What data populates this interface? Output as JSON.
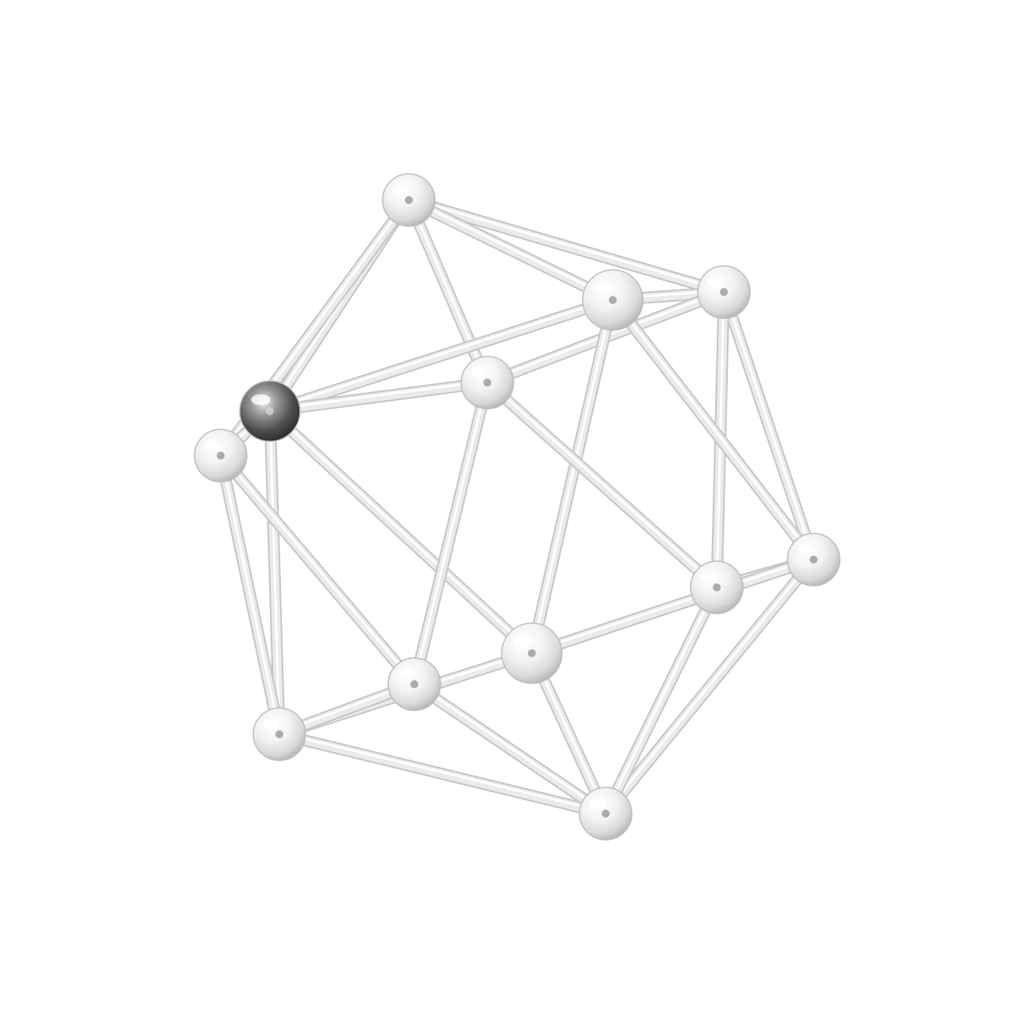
{
  "scene": {
    "subject": "glass-ball-and-rod-icosahedron",
    "background_color": "#ffffff",
    "rod_color": "#eceaea",
    "rod_edge_color": "#c9c3c3",
    "ball_color": "#f4f4f4",
    "ball_edge_color": "#bdbdbd",
    "dark_ball_color": "#3a3a3a"
  }
}
